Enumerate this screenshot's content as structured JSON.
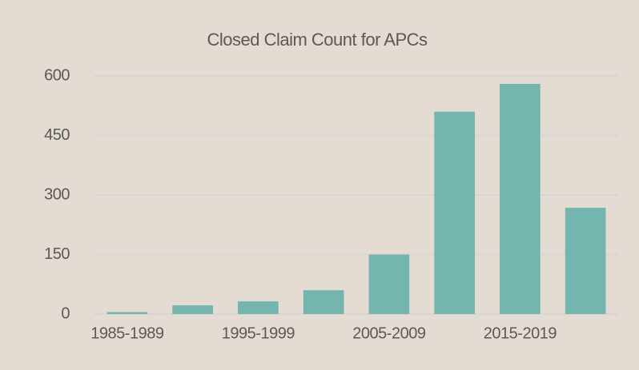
{
  "chart_data": {
    "type": "bar",
    "title": "Closed Claim Count for APCs",
    "categories": [
      "1985-1989",
      null,
      "1995-1999",
      null,
      "2005-2009",
      null,
      "2015-2019",
      null
    ],
    "values": [
      5,
      22,
      32,
      60,
      150,
      510,
      580,
      268
    ],
    "color": "#74b5af",
    "ylim": [
      0,
      600
    ],
    "yticks": [
      0,
      150,
      300,
      450,
      600
    ],
    "grid": true
  }
}
